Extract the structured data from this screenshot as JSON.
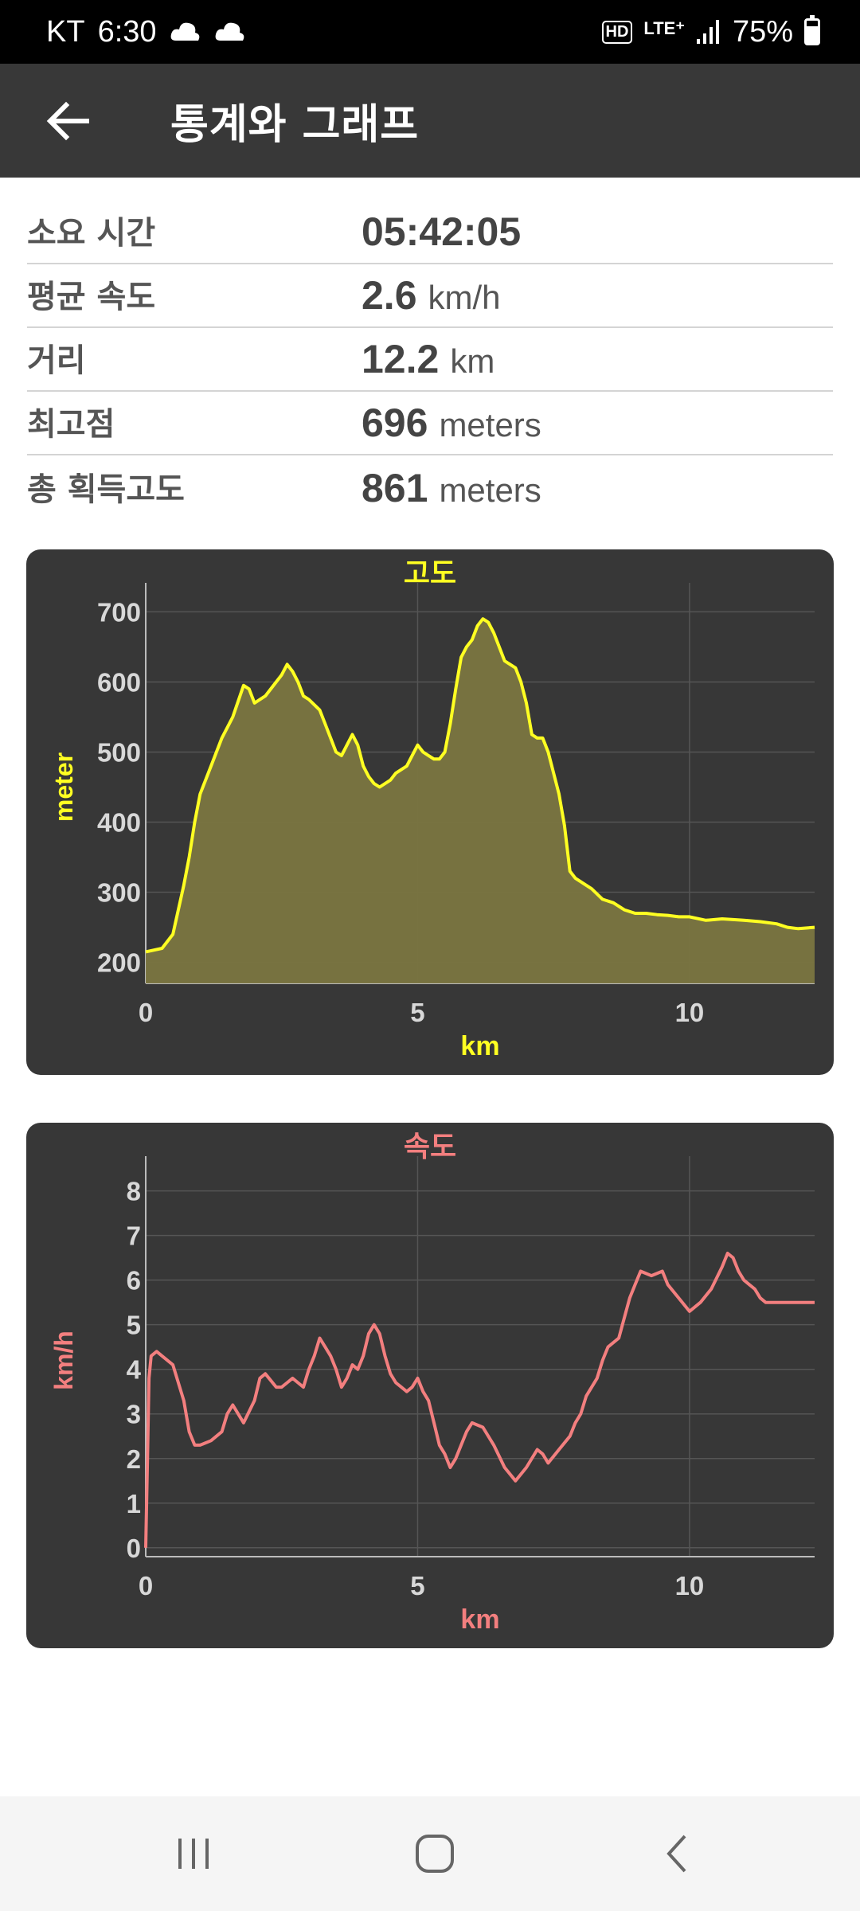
{
  "status_bar": {
    "carrier": "KT",
    "time": "6:30",
    "hd": "HD",
    "network": "LTE⁺",
    "battery": "75%",
    "battery_level": 0.75
  },
  "app_bar": {
    "title": "통계와 그래프",
    "back_icon": "arrow-left-icon"
  },
  "stats": [
    {
      "label": "소요 시간",
      "value": "05:42:05",
      "unit": ""
    },
    {
      "label": "평균 속도",
      "value": "2.6",
      "unit": "km/h"
    },
    {
      "label": "거리",
      "value": "12.2",
      "unit": "km"
    },
    {
      "label": "최고점",
      "value": "696",
      "unit": "meters"
    },
    {
      "label": "총 획득고도",
      "value": "861",
      "unit": "meters"
    }
  ],
  "chart_data": [
    {
      "type": "area",
      "title": "고도",
      "xlabel": "km",
      "ylabel": "meter",
      "color": "#ffff22",
      "fill": "#7a7540",
      "xlim": [
        0,
        12.3
      ],
      "ylim": [
        170,
        730
      ],
      "xticks": [
        0,
        5,
        10
      ],
      "yticks": [
        200,
        300,
        400,
        500,
        600,
        700
      ],
      "grid": true,
      "x": [
        0,
        0.3,
        0.5,
        0.7,
        0.8,
        0.9,
        1.0,
        1.2,
        1.4,
        1.6,
        1.8,
        1.9,
        2.0,
        2.2,
        2.4,
        2.5,
        2.6,
        2.7,
        2.8,
        2.9,
        3.0,
        3.2,
        3.3,
        3.4,
        3.5,
        3.6,
        3.7,
        3.8,
        3.9,
        4.0,
        4.1,
        4.2,
        4.3,
        4.5,
        4.6,
        4.8,
        4.9,
        5.0,
        5.1,
        5.2,
        5.3,
        5.4,
        5.5,
        5.6,
        5.7,
        5.8,
        5.9,
        6.0,
        6.1,
        6.2,
        6.3,
        6.4,
        6.5,
        6.6,
        6.7,
        6.8,
        6.9,
        7.0,
        7.1,
        7.2,
        7.3,
        7.4,
        7.5,
        7.6,
        7.7,
        7.8,
        7.9,
        8.0,
        8.1,
        8.2,
        8.4,
        8.6,
        8.8,
        9.0,
        9.2,
        9.4,
        9.6,
        9.8,
        10.0,
        10.3,
        10.6,
        11.0,
        11.3,
        11.6,
        11.8,
        12.0,
        12.3
      ],
      "y": [
        215,
        220,
        240,
        310,
        350,
        400,
        440,
        480,
        520,
        550,
        595,
        590,
        570,
        580,
        600,
        610,
        625,
        615,
        600,
        580,
        575,
        560,
        540,
        520,
        500,
        495,
        510,
        525,
        510,
        480,
        465,
        455,
        450,
        460,
        470,
        480,
        495,
        510,
        500,
        495,
        490,
        490,
        500,
        540,
        590,
        635,
        650,
        660,
        680,
        690,
        685,
        670,
        650,
        630,
        625,
        620,
        600,
        570,
        525,
        520,
        520,
        500,
        470,
        440,
        395,
        330,
        320,
        315,
        310,
        305,
        290,
        285,
        275,
        270,
        270,
        268,
        267,
        265,
        265,
        260,
        262,
        260,
        258,
        255,
        250,
        248,
        250
      ]
    },
    {
      "type": "line",
      "title": "속도",
      "xlabel": "km",
      "ylabel": "km/h",
      "color": "#f37f7f",
      "xlim": [
        0,
        12.3
      ],
      "ylim": [
        -0.2,
        8.6
      ],
      "xticks": [
        0,
        5,
        10
      ],
      "yticks": [
        0,
        1,
        2,
        3,
        4,
        5,
        6,
        7,
        8
      ],
      "grid": true,
      "x": [
        0,
        0.03,
        0.06,
        0.1,
        0.2,
        0.3,
        0.5,
        0.7,
        0.8,
        0.9,
        1.0,
        1.2,
        1.4,
        1.5,
        1.6,
        1.7,
        1.8,
        2.0,
        2.1,
        2.2,
        2.4,
        2.5,
        2.6,
        2.7,
        2.8,
        2.9,
        3.0,
        3.1,
        3.2,
        3.3,
        3.4,
        3.5,
        3.6,
        3.7,
        3.8,
        3.9,
        4.0,
        4.1,
        4.2,
        4.3,
        4.4,
        4.5,
        4.6,
        4.7,
        4.8,
        4.9,
        5.0,
        5.1,
        5.2,
        5.3,
        5.4,
        5.5,
        5.6,
        5.7,
        5.8,
        5.9,
        6.0,
        6.2,
        6.4,
        6.6,
        6.8,
        7.0,
        7.2,
        7.3,
        7.4,
        7.6,
        7.8,
        7.9,
        8.0,
        8.1,
        8.3,
        8.4,
        8.5,
        8.7,
        8.9,
        9.0,
        9.1,
        9.3,
        9.5,
        9.6,
        9.8,
        10.0,
        10.2,
        10.4,
        10.6,
        10.7,
        10.8,
        10.9,
        11.0,
        11.1,
        11.2,
        11.3,
        11.4,
        11.5,
        11.6,
        11.8,
        12.0,
        12.2,
        12.3
      ],
      "y": [
        0,
        1.8,
        3.8,
        4.3,
        4.4,
        4.3,
        4.1,
        3.3,
        2.6,
        2.3,
        2.3,
        2.4,
        2.6,
        3.0,
        3.2,
        3.0,
        2.8,
        3.3,
        3.8,
        3.9,
        3.6,
        3.6,
        3.7,
        3.8,
        3.7,
        3.6,
        4.0,
        4.3,
        4.7,
        4.5,
        4.3,
        4.0,
        3.6,
        3.8,
        4.1,
        4.0,
        4.3,
        4.8,
        5.0,
        4.8,
        4.3,
        3.9,
        3.7,
        3.6,
        3.5,
        3.6,
        3.8,
        3.5,
        3.3,
        2.8,
        2.3,
        2.1,
        1.8,
        2.0,
        2.3,
        2.6,
        2.8,
        2.7,
        2.3,
        1.8,
        1.5,
        1.8,
        2.2,
        2.1,
        1.9,
        2.2,
        2.5,
        2.8,
        3.0,
        3.4,
        3.8,
        4.2,
        4.5,
        4.7,
        5.6,
        5.9,
        6.2,
        6.1,
        6.2,
        5.9,
        5.6,
        5.3,
        5.5,
        5.8,
        6.3,
        6.6,
        6.5,
        6.2,
        6.0,
        5.9,
        5.8,
        5.6,
        5.5,
        5.5,
        5.5,
        5.5,
        5.5,
        5.5,
        5.5
      ]
    }
  ],
  "nav_bar": {
    "recents_icon": "recents-icon",
    "home_icon": "home-icon",
    "back_icon": "back-chevron-icon"
  }
}
